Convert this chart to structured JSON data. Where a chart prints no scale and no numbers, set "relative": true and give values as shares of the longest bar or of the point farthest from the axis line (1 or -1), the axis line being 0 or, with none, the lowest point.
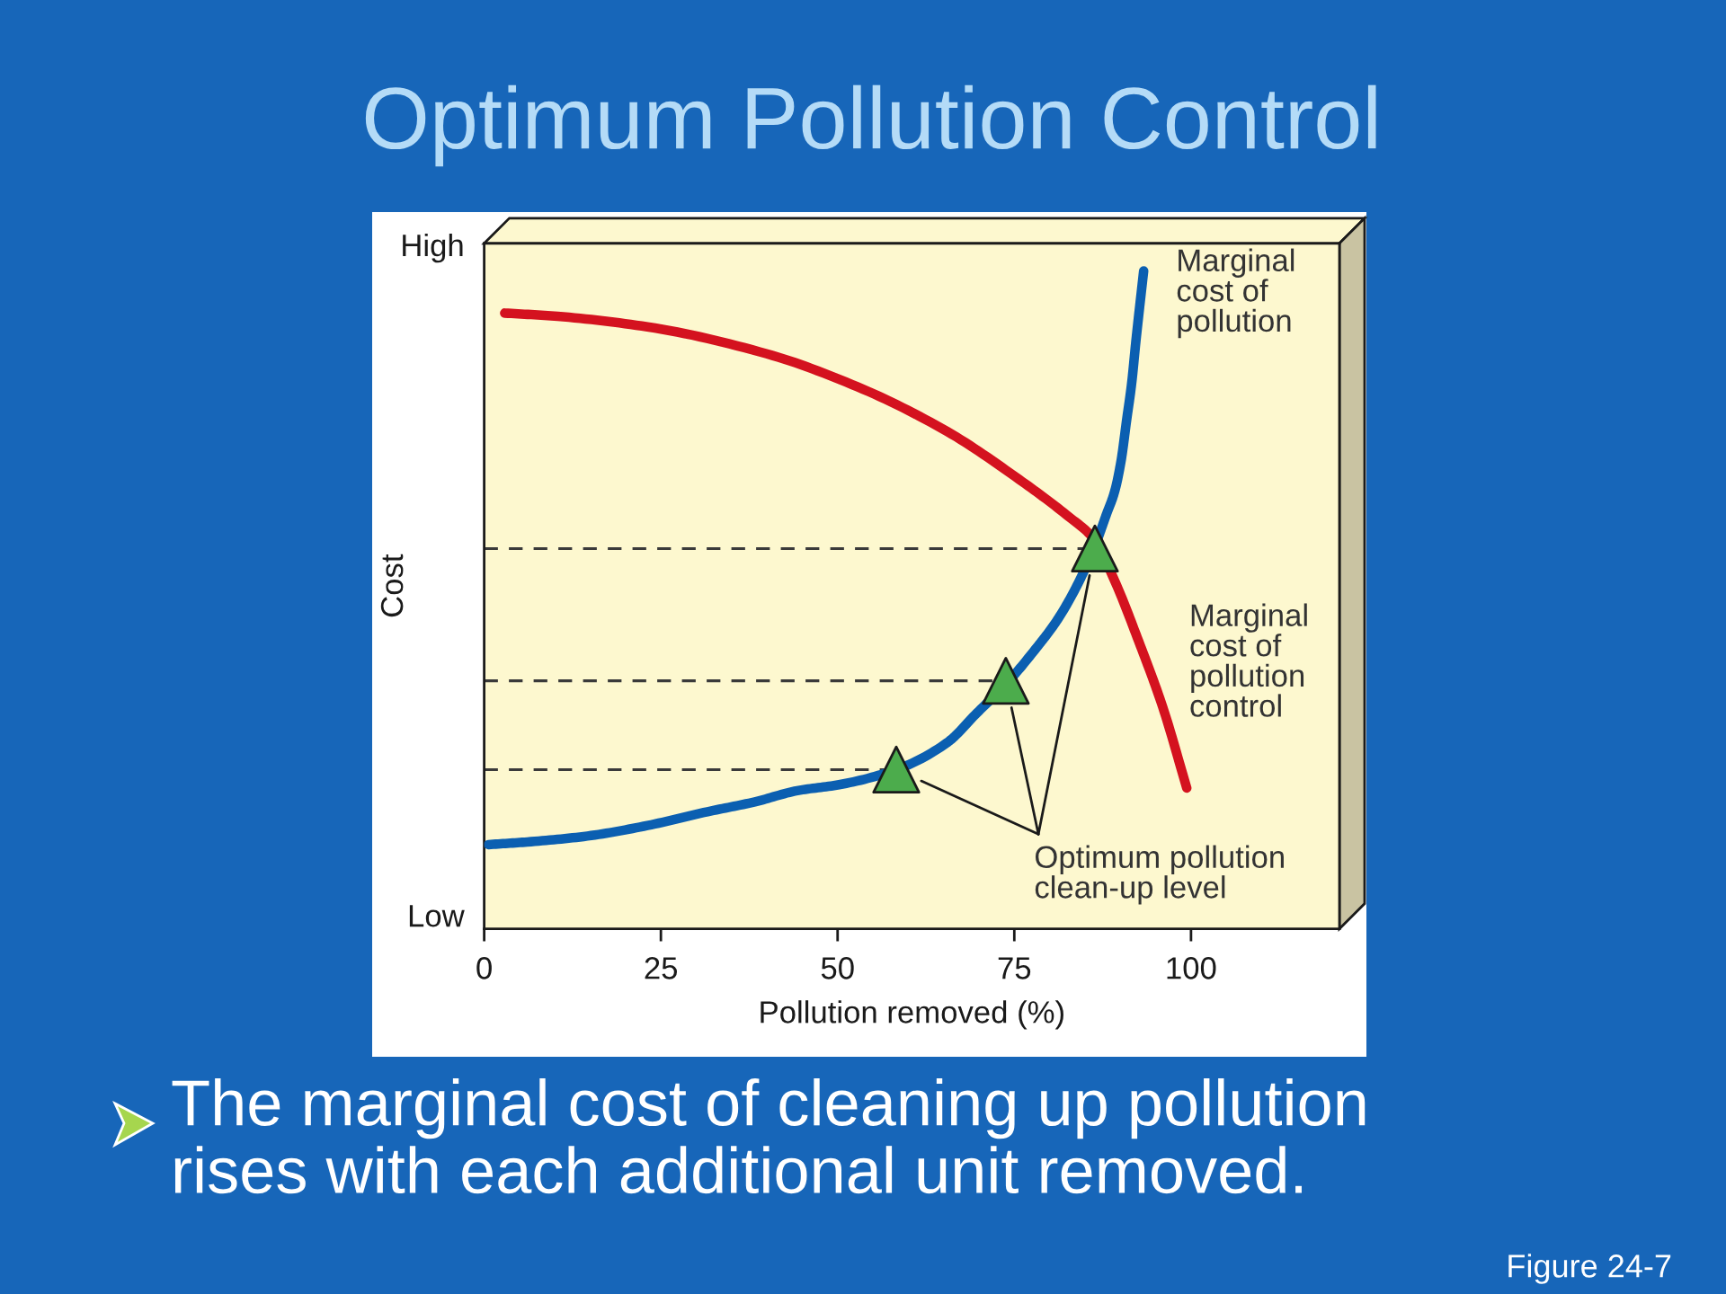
{
  "chart_data": {
    "type": "line",
    "title": "Optimum Pollution Control",
    "xlabel": "Pollution removed (%)",
    "ylabel": "Cost",
    "relative": true,
    "xlim": [
      0,
      121
    ],
    "xticks": [
      0,
      25,
      50,
      75,
      100
    ],
    "annotations": [
      "High",
      "Low",
      "Optimum pollution\nclean-up level",
      "The marginal cost of cleaning up pollution\nrises with each additional unit removed.",
      "Figure 24-7"
    ],
    "series": [
      {
        "name": "Marginal\ncost of\npollution",
        "color": "#0b5fb1",
        "x": [
          0.6,
          6.1,
          14.6,
          23.1,
          31.6,
          38.3,
          44.3,
          50.2,
          58.3,
          65.5,
          69.7,
          74.0,
          78.2,
          80.8,
          83.3,
          86.3,
          88.0,
          89.2,
          90.1,
          90.9,
          91.6,
          92.2,
          93.3
        ],
        "values": [
          0.128,
          0.132,
          0.141,
          0.157,
          0.178,
          0.193,
          0.21,
          0.219,
          0.242,
          0.283,
          0.328,
          0.374,
          0.428,
          0.465,
          0.51,
          0.579,
          0.629,
          0.665,
          0.711,
          0.774,
          0.829,
          0.893,
          1.0
        ]
      },
      {
        "name": "Marginal\ncost of\npollution\ncontrol",
        "color": "#d4121f",
        "x": [
          2.9,
          10.4,
          23.1,
          40.0,
          52.8,
          65.5,
          75.7,
          82.4,
          86.3,
          89.2,
          92.6,
          96.0,
          99.4
        ],
        "values": [
          0.936,
          0.931,
          0.915,
          0.874,
          0.824,
          0.756,
          0.683,
          0.629,
          0.592,
          0.529,
          0.437,
          0.337,
          0.214
        ]
      },
      {
        "type": "line",
        "color": "#3a3a3a",
        "line_style": "dashed",
        "x": [
          0,
          58.3
        ],
        "values": [
          0.242,
          0.242
        ]
      },
      {
        "type": "line",
        "color": "#3a3a3a",
        "line_style": "dashed",
        "x": [
          0,
          73.8
        ],
        "values": [
          0.377,
          0.377
        ]
      },
      {
        "type": "line",
        "color": "#3a3a3a",
        "line_style": "dashed",
        "x": [
          0,
          86.4
        ],
        "values": [
          0.578,
          0.578
        ]
      },
      {
        "type": "scatter",
        "color": "#4cac4c",
        "marker": "triangle",
        "x": [
          58.3,
          73.8,
          86.4
        ],
        "values": [
          0.242,
          0.377,
          0.578
        ]
      }
    ]
  }
}
